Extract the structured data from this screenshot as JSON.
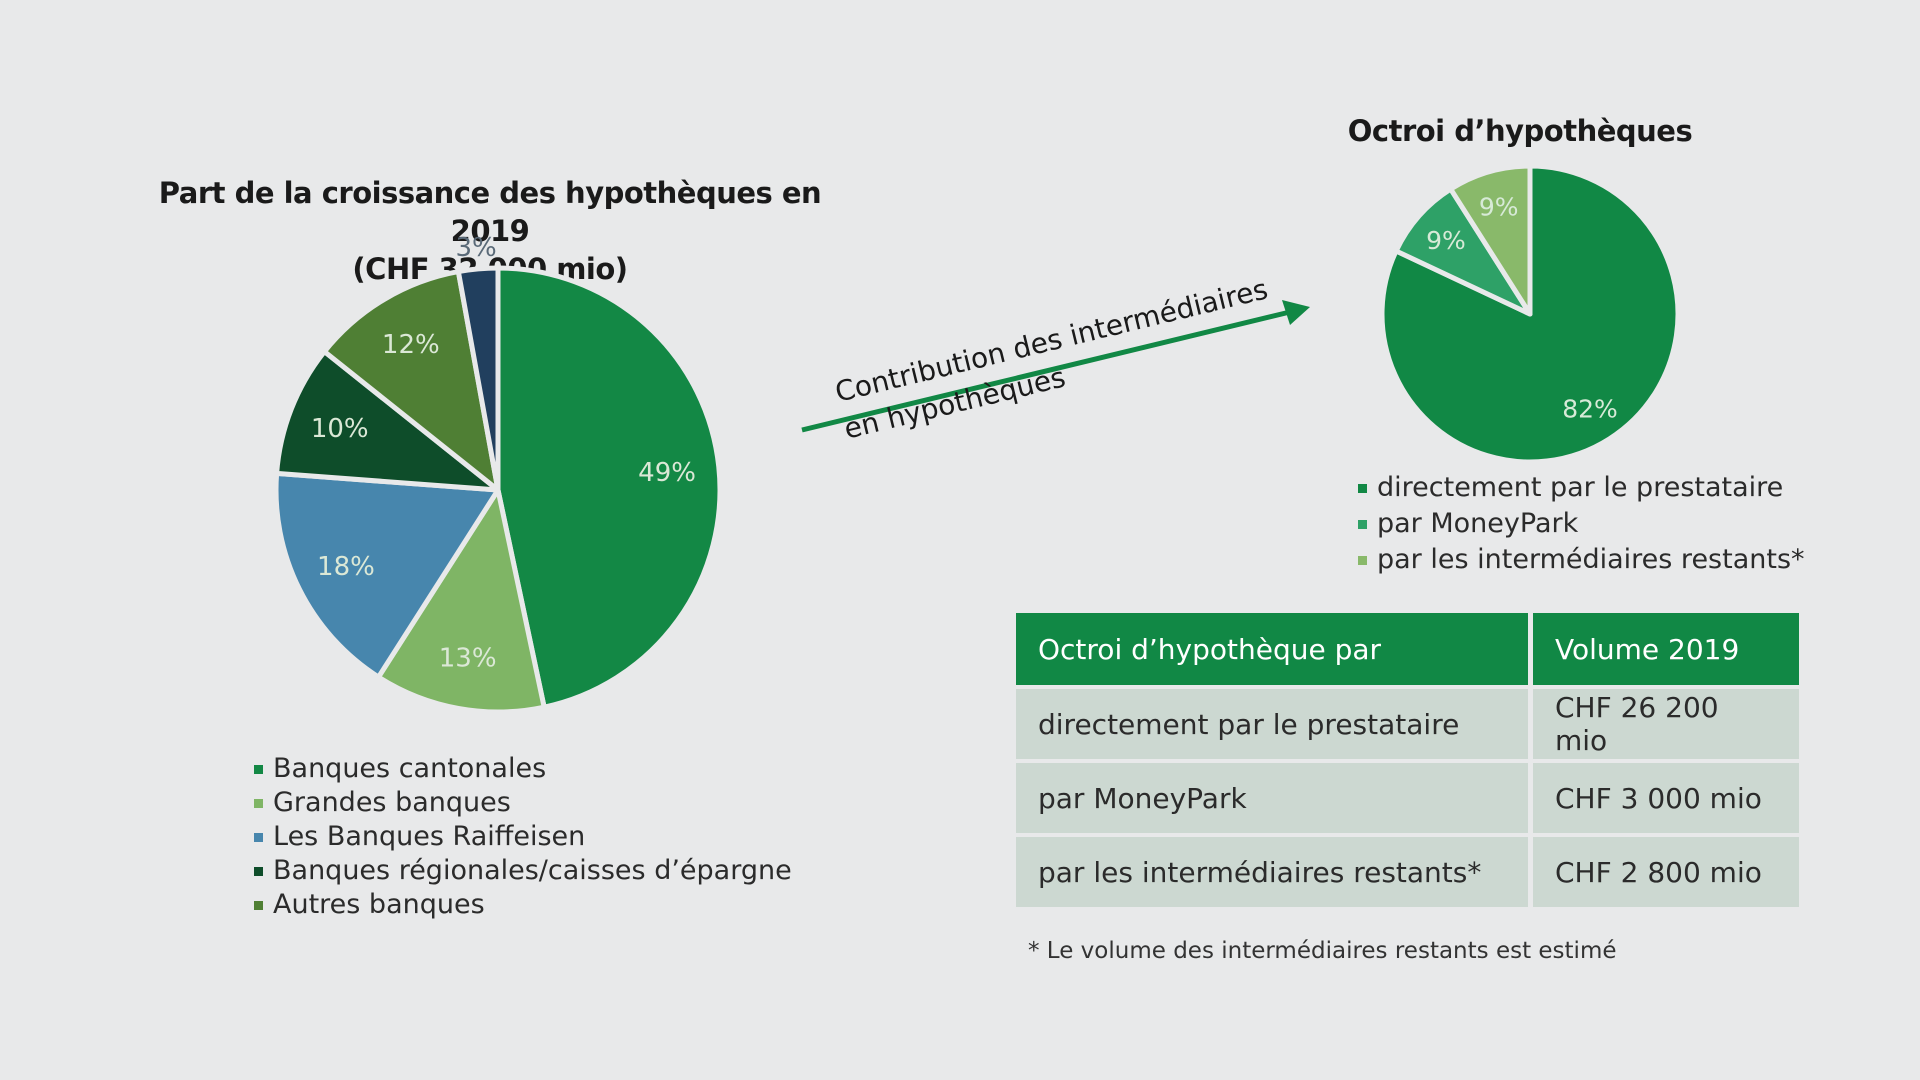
{
  "colors": {
    "cantonales": "#138845",
    "grandes": "#7fb565",
    "raiffeisen": "#4786ad",
    "regionales": "#0e4d2a",
    "autres": "#4f7f34",
    "other3": "#213f5e",
    "direct": "#118845",
    "moneypark": "#2ea167",
    "restants": "#89b96a",
    "table_header": "#118845",
    "table_row": "#ccd8d1"
  },
  "chart_data": [
    {
      "type": "pie",
      "title": "Part de la croissance des hypothèques en 2019",
      "subtitle": "(CHF 32 000 mio)",
      "slices": [
        {
          "label": "Banques cantonales",
          "value": 49,
          "display": "49%"
        },
        {
          "label": "Grandes banques",
          "value": 13,
          "display": "13%"
        },
        {
          "label": "Les Banques Raiffeisen",
          "value": 18,
          "display": "18%"
        },
        {
          "label": "Banques régionales/caisses d'épargne",
          "value": 10,
          "display": "10%"
        },
        {
          "label": "Autres banques",
          "value": 12,
          "display": "12%"
        },
        {
          "label": "",
          "value": 3,
          "display": "3%"
        }
      ],
      "legend": [
        "Banques cantonales",
        "Grandes banques",
        "Les Banques Raiffeisen",
        "Banques régionales/caisses d’épargne",
        "Autres banques"
      ]
    },
    {
      "type": "pie",
      "title": "Octroi d’hypothèques",
      "slices": [
        {
          "label": "directement par le prestataire",
          "value": 82,
          "display": "82%"
        },
        {
          "label": "par MoneyPark",
          "value": 9,
          "display": "9%"
        },
        {
          "label": "par les intermédiaires restants*",
          "value": 9,
          "display": "9%"
        }
      ],
      "legend": [
        "directement par le prestataire",
        "par MoneyPark",
        "par les intermédiaires restants*"
      ]
    }
  ],
  "arrow": {
    "line1": "Contribution des intermédiaires",
    "line2": "en hypothèques"
  },
  "table": {
    "headers": [
      "Octroi d’hypothèque par",
      "Volume 2019"
    ],
    "rows": [
      [
        "directement par le prestataire",
        "CHF 26 200 mio"
      ],
      [
        "par MoneyPark",
        "CHF 3 000 mio"
      ],
      [
        "par les intermédiaires restants*",
        "CHF 2 800 mio"
      ]
    ]
  },
  "footnote": "* Le volume des intermédiaires restants est estimé"
}
